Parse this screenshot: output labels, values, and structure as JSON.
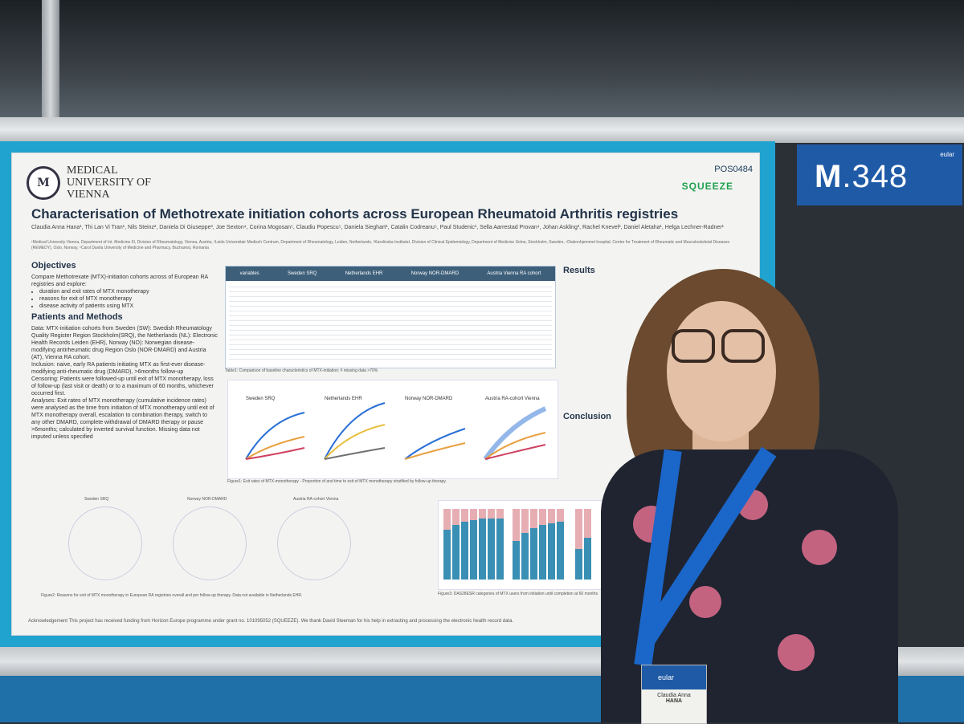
{
  "poster": {
    "institution": "MEDICAL UNIVERSITY OF VIENNA",
    "poster_id": "POS0484",
    "project_logo": "SQUEEZE",
    "title": "Characterisation of Methotrexate initiation cohorts across European Rheumatoid Arthritis registries",
    "authors": "Claudia Anna Hana¹, Thi Lan Vi Tran¹, Nils Steinz², Daniela Di Giuseppe³, Joe Sexton⁴, Corina Mogosan⁵, Claudiu Popescu⁵, Daniela Sieghart¹, Catalin Codreanu⁵, Paul Studenic¹, Sella Aarrestad Provan⁴, Johan Askling³, Rachel Knevel², Daniel Aletaha¹, Helga Lechner-Radner¹",
    "affiliations": "¹Medical University Vienna, Department of Int. Medicine III, Division of Rheumatology, Vienna, Austria, ²Leids Universitair Medisch Centrum, Department of Rheumatology, Leiden, Netherlands, ³Karolinska Institutet, Division of Clinical Epidemiology, Department of Medicine Solna, Stockholm, Sweden, ⁴Diakonhjemmet hospital, Centre for Treatment of Rheumatic and Musculoskeletal Diseases (REMEDY), Oslo, Norway, ⁵Carol Davila University of Medicine and Pharmacy, Bucharest, Romania",
    "objectives_heading": "Objectives",
    "objectives_intro": "Compare Methotrexate (MTX)-initiation cohorts across of European RA registries and explore:",
    "objectives_items": [
      "duration and exit rates of MTX monotherapy",
      "reasons for exit of MTX monotherapy",
      "disease activity of patients using MTX"
    ],
    "methods_heading": "Patients and Methods",
    "methods_data": "Data: MTX-initiation cohorts from Sweden (SW): Swedish Rheumatology Quality Register Region Stockholm(SRQ), the Netherlands (NL): Electronic Health Records Leiden (EHR), Norway (NO): Norwegian disease-modifying antirheumatic drug Region Oslo (NOR-DMARD) and Austria (AT), Vienna RA cohort.",
    "methods_inclusion": "Inclusion: naive, early RA patients initiating MTX as first-ever disease-modifying anti-rheumatic drug (DMARD), >6months follow-up",
    "methods_censoring": "Censoring: Patients were followed-up until exit of MTX monotherapy, loss of follow-up (last visit or death) or to a maximum of 60 months, whichever occurred first.",
    "methods_analyses": "Analyses: Exit rates of MTX monotherapy (cumulative incidence rates) were analysed as the time from initiation of MTX monotherapy until exit of MTX monotherapy overall, escalation to combination therapy, switch to any other DMARD, complete withdrawal of DMARD therapy or pause >6months; calculated by inverted survival function. Missing data not imputed unless specified",
    "table_cols": [
      "variables",
      "Sweden SRQ",
      "Netherlands EHR",
      "Norway NOR-DMARD",
      "Austria Vienna RA cohort"
    ],
    "table_caption": "Table1: Comparison of baseline characteristics of MTX-initiation; # missing data >70%",
    "fig1_caption": "Figure1: Exit rates of MTX-monotherapy - Proportion of and time to exit of MTX monotherapy stratified by follow-up therapy.",
    "fig1_panels": [
      "Sweden SRQ",
      "Netherlands EHR",
      "Norway NOR-DMARD",
      "Austria RA-cohort Vienna"
    ],
    "fig2_panels": [
      "Sweden SRQ",
      "Norway NOR-DMARD",
      "Austria RA-cohort Vienna"
    ],
    "fig2_caption": "Figure2: Reasons for exit of MTX monotherapy in European RA registries overall and per follow-up therapy. Data not available in Netherlands EHR.",
    "fig3_caption": "Figure3: DAS28ESR categories of MTX users from initiation until completion at 60 months",
    "results_heading": "Results",
    "conclusion_heading": "Conclusion",
    "acknowledgement": "Acknowledgement This project has received funding from Horizon Europe programme under grant no. 101095052 (SQUEEZE). We thank David Steeman for his help in extracting and processing the electronic health record data."
  },
  "board_number": {
    "letter": "M",
    "number": ".348",
    "org": "eular"
  },
  "badge": {
    "org": "eular",
    "name_line1": "Claudia Anna",
    "name_line2": "HANA"
  },
  "colors": {
    "board_blue": "#21a3cf",
    "eular_blue": "#1f5aa6",
    "poster_bg": "#f3f4f2",
    "title_navy": "#24344a"
  }
}
